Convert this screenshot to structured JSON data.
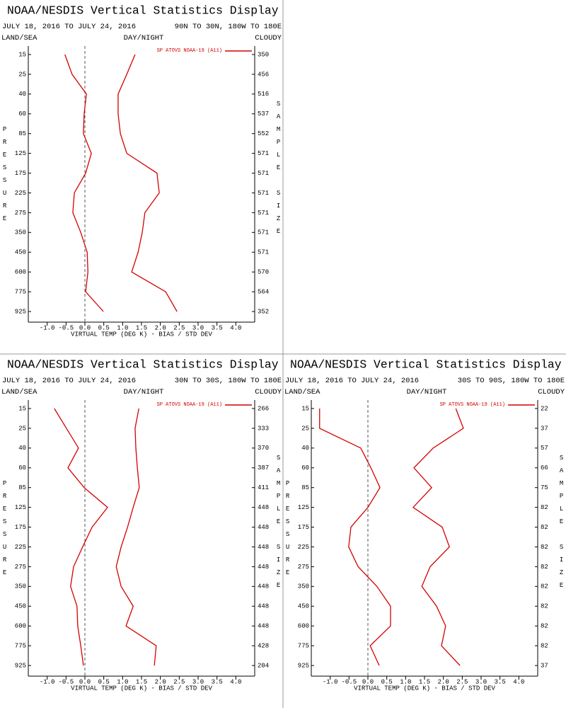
{
  "chart_data": [
    {
      "type": "line",
      "title": "NOAA/NESDIS Vertical Statistics Display",
      "date_range": "JULY 18, 2016 TO JULY 24, 2016",
      "region": "90N TO 30N, 180W TO 180E",
      "labels": [
        "LAND/SEA",
        "DAY/NIGHT",
        "CLOUDY"
      ],
      "y_label": "PRESSURE",
      "y2_label": "SAMPLE SIZE",
      "x_label": "VIRTUAL TEMP (DEG K) - BIAS / STD DEV",
      "categories": [
        15,
        25,
        40,
        60,
        85,
        125,
        175,
        225,
        275,
        350,
        450,
        600,
        775,
        925
      ],
      "sample_size": [
        350,
        456,
        516,
        537,
        552,
        571,
        571,
        571,
        571,
        571,
        571,
        570,
        564,
        352
      ],
      "xlim": [
        -1.5,
        4.5
      ],
      "xticks": [
        {
          "value": -1.0,
          "label": "-1.0"
        },
        {
          "value": -0.5,
          "label": "-0.5"
        },
        {
          "value": 0,
          "label": "0.0"
        },
        {
          "value": 0.5,
          "label": "0.5"
        },
        {
          "value": 1,
          "label": "1.0"
        },
        {
          "value": 1.5,
          "label": "1.5"
        },
        {
          "value": 2,
          "label": "2.0"
        },
        {
          "value": 2.5,
          "label": "2.5"
        },
        {
          "value": 3,
          "label": "3.0"
        },
        {
          "value": 3.5,
          "label": "3.5"
        },
        {
          "value": 4,
          "label": "4.0"
        }
      ],
      "series": [
        {
          "name": "SP ATOVS NOAA-19 (A11)",
          "color": "#d40000",
          "bias": [
            -0.53,
            -0.34,
            0.04,
            -0.02,
            -0.04,
            0.17,
            0.02,
            -0.28,
            -0.32,
            -0.11,
            0.06,
            0.08,
            0.02,
            0.49
          ],
          "std_dev": [
            1.33,
            1.11,
            0.88,
            0.88,
            0.94,
            1.11,
            1.91,
            1.97,
            1.59,
            1.52,
            1.41,
            1.24,
            2.14,
            2.44
          ]
        }
      ]
    },
    {
      "type": "line",
      "title": "NOAA/NESDIS Vertical Statistics Display",
      "date_range": "JULY 18, 2016 TO JULY 24, 2016",
      "region": "30N TO 30S, 180W TO 180E",
      "labels": [
        "LAND/SEA",
        "DAY/NIGHT",
        "CLOUDY"
      ],
      "y_label": "PRESSURE",
      "y2_label": "SAMPLE SIZE",
      "x_label": "VIRTUAL TEMP (DEG K) - BIAS / STD DEV",
      "categories": [
        15,
        25,
        40,
        60,
        85,
        125,
        175,
        225,
        275,
        350,
        450,
        600,
        775,
        925
      ],
      "sample_size": [
        266,
        333,
        370,
        387,
        411,
        448,
        448,
        448,
        448,
        448,
        448,
        448,
        428,
        204
      ],
      "xlim": [
        -1.5,
        4.5
      ],
      "xticks": [
        {
          "value": -1.0,
          "label": "-1.0"
        },
        {
          "value": -0.5,
          "label": "-0.5"
        },
        {
          "value": 0,
          "label": "0.0"
        },
        {
          "value": 0.5,
          "label": "0.5"
        },
        {
          "value": 1,
          "label": "1.0"
        },
        {
          "value": 1.5,
          "label": "1.5"
        },
        {
          "value": 2,
          "label": "2.0"
        },
        {
          "value": 2.5,
          "label": "2.5"
        },
        {
          "value": 3,
          "label": "3.0"
        },
        {
          "value": 3.5,
          "label": "3.5"
        },
        {
          "value": 4,
          "label": "4.0"
        }
      ],
      "series": [
        {
          "name": "SP ATOVS NOAA-19 (A11)",
          "color": "#d40000",
          "bias": [
            -0.81,
            -0.49,
            -0.17,
            -0.45,
            -0.02,
            0.6,
            0.19,
            -0.06,
            -0.3,
            -0.38,
            -0.21,
            -0.19,
            -0.11,
            -0.04
          ],
          "std_dev": [
            1.43,
            1.33,
            1.35,
            1.39,
            1.44,
            1.28,
            1.13,
            0.96,
            0.83,
            0.96,
            1.28,
            1.09,
            1.89,
            1.84
          ]
        }
      ]
    },
    {
      "type": "line",
      "title": "NOAA/NESDIS Vertical Statistics Display",
      "date_range": "JULY 18, 2016 TO JULY 24, 2016",
      "region": "30S TO 90S, 180W TO 180E",
      "labels": [
        "LAND/SEA",
        "DAY/NIGHT",
        "CLOUDY"
      ],
      "y_label": "PRESSURE",
      "y2_label": "SAMPLE SIZE",
      "x_label": "VIRTUAL TEMP (DEG K) - BIAS / STD DEV",
      "categories": [
        15,
        25,
        40,
        60,
        85,
        125,
        175,
        225,
        275,
        350,
        450,
        600,
        775,
        925
      ],
      "sample_size": [
        22,
        37,
        57,
        66,
        75,
        82,
        82,
        82,
        82,
        82,
        82,
        82,
        82,
        37
      ],
      "xlim": [
        -1.5,
        4.5
      ],
      "xticks": [
        {
          "value": -1.0,
          "label": "-1.0"
        },
        {
          "value": -0.5,
          "label": "-0.5"
        },
        {
          "value": 0,
          "label": "0.0"
        },
        {
          "value": 0.5,
          "label": "0.5"
        },
        {
          "value": 1,
          "label": "1.0"
        },
        {
          "value": 1.5,
          "label": "1.5"
        },
        {
          "value": 2,
          "label": "2.0"
        },
        {
          "value": 2.5,
          "label": "2.5"
        },
        {
          "value": 3,
          "label": "3.0"
        },
        {
          "value": 3.5,
          "label": "3.5"
        },
        {
          "value": 4,
          "label": "4.0"
        }
      ],
      "series": [
        {
          "name": "SP ATOVS NOAA-19 (A11)",
          "color": "#d40000",
          "bias": [
            -1.28,
            -1.28,
            -0.19,
            0.08,
            0.32,
            0,
            -0.45,
            -0.51,
            -0.26,
            0.24,
            0.6,
            0.6,
            0.06,
            0.3
          ],
          "std_dev": [
            2.33,
            2.53,
            1.73,
            1.22,
            1.69,
            1.2,
            1.97,
            2.16,
            1.65,
            1.43,
            1.82,
            2.06,
            1.95,
            2.44
          ]
        }
      ]
    }
  ]
}
